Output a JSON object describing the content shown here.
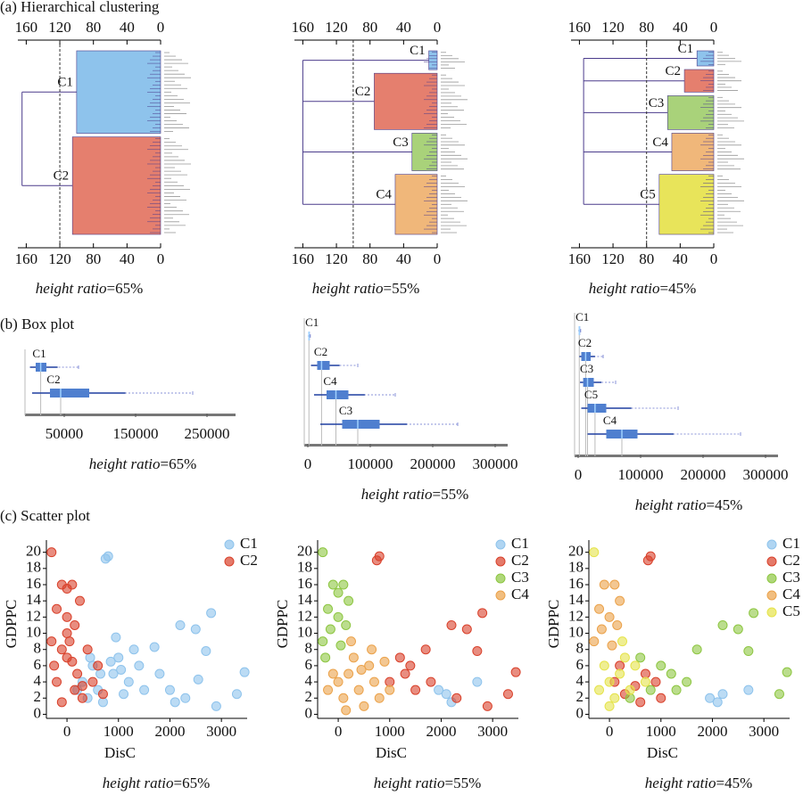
{
  "chart_data": [
    {
      "type": "dendrogram",
      "title": "(a) Hierarchical clustering",
      "xlim": [
        0,
        170
      ],
      "xticks": [
        160,
        120,
        80,
        40,
        0
      ],
      "cut": 120,
      "root": 165,
      "clusters": [
        {
          "name": "C1",
          "color": "#8ec3ec",
          "height": 100,
          "leaves": 23
        },
        {
          "name": "C2",
          "color": "#e57f6e",
          "height": 105,
          "leaves": 27
        }
      ],
      "caption_label": "height ratio",
      "caption_value": "=65%"
    },
    {
      "type": "dendrogram",
      "xlim": [
        0,
        170
      ],
      "xticks": [
        160,
        120,
        80,
        40,
        0
      ],
      "cut": 100,
      "root": 160,
      "clusters": [
        {
          "name": "C1",
          "color": "#8ec3ec",
          "height": 10,
          "leaves": 6
        },
        {
          "name": "C2",
          "color": "#e57f6e",
          "height": 75,
          "leaves": 16
        },
        {
          "name": "C3",
          "color": "#a9d27a",
          "height": 30,
          "leaves": 11
        },
        {
          "name": "C4",
          "color": "#f0b77a",
          "height": 50,
          "leaves": 17
        }
      ],
      "caption_label": "height ratio",
      "caption_value": "=55%"
    },
    {
      "type": "dendrogram",
      "xlim": [
        0,
        170
      ],
      "xticks": [
        160,
        120,
        80,
        40,
        0
      ],
      "cut": 80,
      "root": 155,
      "clusters": [
        {
          "name": "C1",
          "color": "#8ec3ec",
          "height": 20,
          "leaves": 5
        },
        {
          "name": "C2",
          "color": "#e57f6e",
          "height": 35,
          "leaves": 7
        },
        {
          "name": "C3",
          "color": "#a9d27a",
          "height": 55,
          "leaves": 10
        },
        {
          "name": "C4",
          "color": "#f0b77a",
          "height": 50,
          "leaves": 11
        },
        {
          "name": "C5",
          "color": "#e8e45a",
          "height": 65,
          "leaves": 17
        }
      ],
      "caption_label": "height ratio",
      "caption_value": "=45%"
    },
    {
      "type": "box",
      "title": "(b) Box plot",
      "xlim": [
        0,
        290000
      ],
      "xticks": [
        50000,
        150000,
        250000
      ],
      "series": [
        {
          "name": "C1",
          "color": "#4f7fcf",
          "min": 2000,
          "q1": 10000,
          "median": 17000,
          "q3": 25000,
          "max": 70000
        },
        {
          "name": "C2",
          "color": "#4f7fcf",
          "min": 5000,
          "q1": 30000,
          "median": 45000,
          "q3": 85000,
          "max": 230000
        }
      ],
      "caption_label": "height ratio",
      "caption_value": "=65%"
    },
    {
      "type": "box",
      "xlim": [
        0,
        320000
      ],
      "xticks": [
        0,
        100000,
        200000,
        300000
      ],
      "series": [
        {
          "name": "C1",
          "color": "#4f7fcf",
          "min": 500,
          "q1": 1000,
          "median": 1800,
          "q3": 2600,
          "max": 4000
        },
        {
          "name": "C2",
          "color": "#4f7fcf",
          "min": 5000,
          "q1": 15000,
          "median": 22000,
          "q3": 35000,
          "max": 80000
        },
        {
          "name": "C4",
          "color": "#4f7fcf",
          "min": 10000,
          "q1": 30000,
          "median": 45000,
          "q3": 65000,
          "max": 140000
        },
        {
          "name": "C3",
          "color": "#4f7fcf",
          "min": 20000,
          "q1": 55000,
          "median": 80000,
          "q3": 115000,
          "max": 240000
        }
      ],
      "caption_label": "height ratio",
      "caption_value": "=55%"
    },
    {
      "type": "box",
      "xlim": [
        0,
        320000
      ],
      "xticks": [
        0,
        100000,
        200000,
        300000
      ],
      "series": [
        {
          "name": "C1",
          "color": "#4f7fcf",
          "min": 500,
          "q1": 1000,
          "median": 1800,
          "q3": 2600,
          "max": 4000
        },
        {
          "name": "C2",
          "color": "#4f7fcf",
          "min": 2000,
          "q1": 5000,
          "median": 12000,
          "q3": 20000,
          "max": 40000
        },
        {
          "name": "C3",
          "color": "#4f7fcf",
          "min": 3000,
          "q1": 8000,
          "median": 15000,
          "q3": 25000,
          "max": 60000
        },
        {
          "name": "C5",
          "color": "#4f7fcf",
          "min": 5000,
          "q1": 15000,
          "median": 27000,
          "q3": 45000,
          "max": 160000
        },
        {
          "name": "C4",
          "color": "#4f7fcf",
          "min": 15000,
          "q1": 45000,
          "median": 70000,
          "q3": 95000,
          "max": 260000
        }
      ],
      "caption_label": "height ratio",
      "caption_value": "=45%"
    },
    {
      "type": "scatter",
      "title": "(c) Scatter plot",
      "xlabel": "DisC",
      "ylabel": "GDPPC",
      "xlim": [
        -400,
        3500
      ],
      "ylim": [
        -0.5,
        21.5
      ],
      "xticks": [
        0,
        1000,
        2000,
        3000
      ],
      "yticks": [
        0,
        2,
        4,
        6,
        8,
        10,
        12,
        14,
        16,
        18,
        20
      ],
      "series": [
        {
          "name": "C1",
          "color": "#8ec3ec",
          "x": [
            2200,
            2500,
            3450,
            2800,
            2700,
            3300,
            1700,
            2000,
            2300,
            2550,
            800,
            750,
            2900,
            1400,
            1200,
            1000,
            900,
            600,
            500,
            400,
            300,
            700,
            1100,
            1500,
            1300,
            950,
            850,
            650,
            200,
            450,
            1050,
            1800,
            2100
          ],
          "values": [
            11,
            10.5,
            5.2,
            12.5,
            7.8,
            2.5,
            8.3,
            3,
            2,
            4.3,
            19.5,
            19.2,
            1,
            6,
            4,
            7,
            5,
            3,
            6,
            2,
            4,
            1.5,
            2.5,
            3,
            8,
            9.5,
            6.5,
            5,
            3,
            7,
            5.5,
            5,
            1.5
          ]
        },
        {
          "name": "C2",
          "color": "#d9412b",
          "x": [
            -300,
            -100,
            0,
            100,
            -200,
            0,
            150,
            -300,
            -100,
            0,
            100,
            200,
            -200,
            300,
            400,
            500,
            600,
            300,
            -100,
            0,
            250,
            50,
            -250,
            150,
            700
          ],
          "values": [
            20,
            16,
            15.5,
            16,
            13,
            12,
            11,
            9,
            8,
            7,
            6.5,
            5,
            4,
            3.5,
            8,
            4,
            6,
            2,
            1.5,
            10,
            14,
            9,
            6,
            3,
            2.5
          ]
        }
      ],
      "caption_label": "height ratio",
      "caption_value": "=65%"
    },
    {
      "type": "scatter",
      "xlabel": "DisC",
      "ylabel": "GDPPC",
      "xlim": [
        -400,
        3500
      ],
      "ylim": [
        -0.5,
        21.5
      ],
      "xticks": [
        0,
        1000,
        2000,
        3000
      ],
      "yticks": [
        0,
        2,
        4,
        6,
        8,
        10,
        12,
        14,
        16,
        18,
        20
      ],
      "series": [
        {
          "name": "C1",
          "color": "#8ec3ec",
          "x": [
            1950,
            2100,
            2200,
            2700
          ],
          "values": [
            3,
            2.5,
            1.5,
            4
          ]
        },
        {
          "name": "C2",
          "color": "#d9412b",
          "x": [
            800,
            750,
            2200,
            2500,
            3450,
            2800,
            2700,
            3300,
            1700,
            2300,
            1500,
            1300,
            1200,
            1000,
            1400,
            2900,
            1800
          ],
          "values": [
            19.5,
            19,
            11,
            10.5,
            5.2,
            12.5,
            7.8,
            2.5,
            8,
            2,
            3,
            5,
            7,
            4,
            6,
            1,
            4
          ]
        },
        {
          "name": "C3",
          "color": "#8dc641",
          "x": [
            -300,
            -100,
            100,
            -200,
            0,
            150,
            -300,
            200,
            0,
            -150,
            50,
            -250
          ],
          "values": [
            20,
            16,
            16,
            13,
            12,
            11,
            9,
            14,
            15,
            10.5,
            8.5,
            7
          ]
        },
        {
          "name": "C4",
          "color": "#eba24a",
          "x": [
            0,
            200,
            400,
            600,
            800,
            300,
            500,
            100,
            -100,
            700,
            900,
            1000,
            250,
            -200,
            450,
            650,
            150
          ],
          "values": [
            4,
            5,
            3,
            6,
            2,
            7,
            1,
            2,
            5,
            4,
            6.5,
            3,
            9,
            3,
            5.5,
            8,
            0.5
          ]
        }
      ],
      "caption_label": "height ratio",
      "caption_value": "=55%"
    },
    {
      "type": "scatter",
      "xlabel": "DisC",
      "ylabel": "GDPPC",
      "xlim": [
        -400,
        3500
      ],
      "ylim": [
        -0.5,
        21.5
      ],
      "xticks": [
        0,
        1000,
        2000,
        3000
      ],
      "yticks": [
        0,
        2,
        4,
        6,
        8,
        10,
        12,
        14,
        16,
        18,
        20
      ],
      "series": [
        {
          "name": "C1",
          "color": "#8ec3ec",
          "x": [
            2100,
            2200,
            1950,
            2700
          ],
          "values": [
            1.5,
            2.5,
            2,
            3
          ]
        },
        {
          "name": "C2",
          "color": "#d9412b",
          "x": [
            800,
            750,
            200,
            500,
            700,
            900,
            300,
            1000,
            100,
            600
          ],
          "values": [
            19.5,
            19,
            6,
            3.5,
            5,
            4,
            2.5,
            2,
            4,
            1.5
          ]
        },
        {
          "name": "C3",
          "color": "#8dc641",
          "x": [
            2200,
            2500,
            3450,
            2800,
            2700,
            3300,
            1700,
            1500,
            1200,
            1000,
            800,
            600,
            400,
            1300
          ],
          "values": [
            11,
            10.5,
            5.2,
            12.5,
            7.8,
            2.5,
            8,
            4,
            5,
            6,
            3,
            7,
            2,
            3
          ]
        },
        {
          "name": "C4",
          "color": "#eba24a",
          "x": [
            -100,
            100,
            -200,
            0,
            150,
            200,
            -150,
            -300,
            50
          ],
          "values": [
            16,
            16,
            13,
            12,
            11,
            14,
            10.5,
            9,
            8.5
          ]
        },
        {
          "name": "C5",
          "color": "#e5e34a",
          "x": [
            -300,
            0,
            200,
            400,
            -100,
            100,
            300,
            -200,
            500,
            250,
            700,
            0
          ],
          "values": [
            20,
            4,
            5,
            3,
            6,
            2,
            7,
            3,
            6,
            9,
            4,
            1
          ]
        }
      ],
      "caption_label": "height ratio",
      "caption_value": "=45%"
    }
  ]
}
